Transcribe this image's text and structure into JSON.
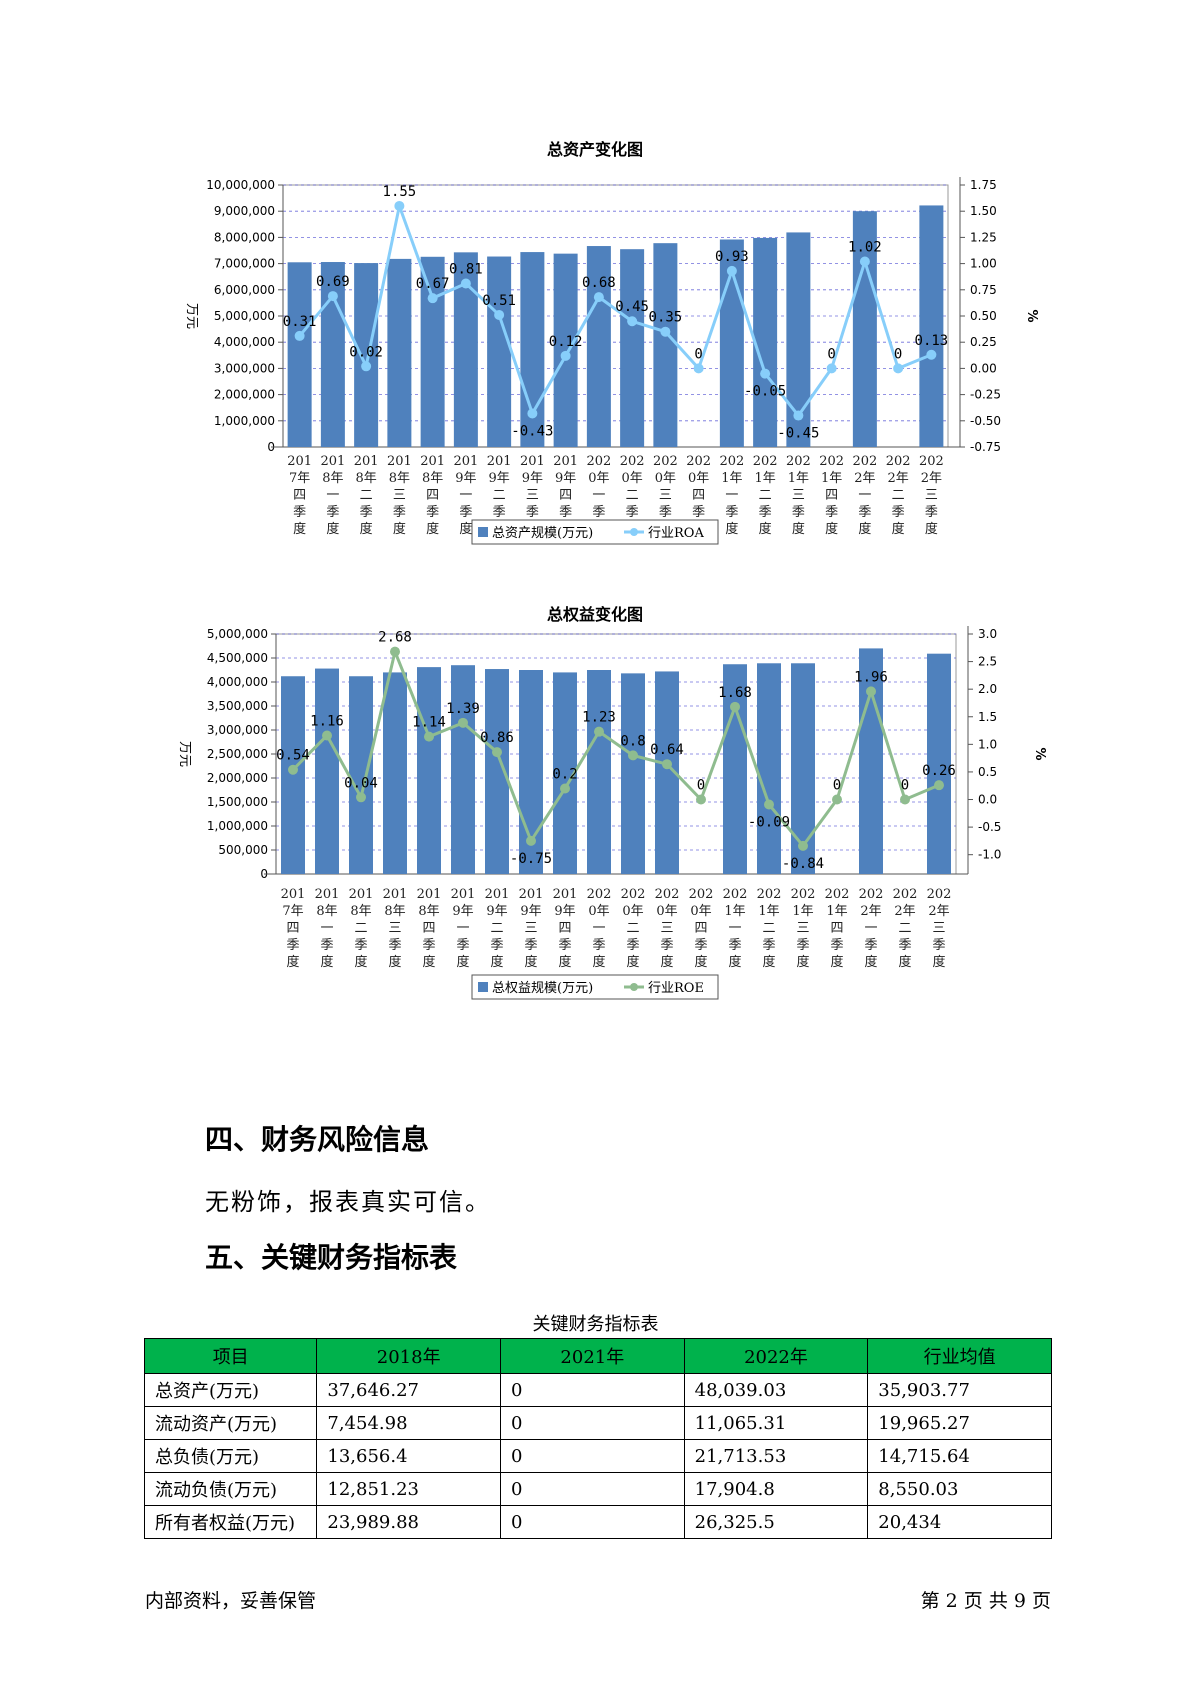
{
  "chart_data": [
    {
      "type": "bar",
      "title": "总资产变化图",
      "ylabel": "万元",
      "y2label": "%",
      "categories": [
        "2017年四季度",
        "2018年一季度",
        "2018年二季度",
        "2018年三季度",
        "2018年四季度",
        "2019年一季度",
        "2019年二季度",
        "2019年三季度",
        "2019年四季度",
        "2020年一季度",
        "2020年二季度",
        "2020年三季度",
        "2020年四季度",
        "2021年一季度",
        "2021年二季度",
        "2021年三季度",
        "2021年四季度",
        "2022年一季度",
        "2022年二季度",
        "2022年三季度"
      ],
      "tick_lines": [
        [
          "201",
          "7年",
          "四",
          "季",
          "度"
        ],
        [
          "201",
          "8年",
          "一",
          "季",
          "度"
        ],
        [
          "201",
          "8年",
          "二",
          "季",
          "度"
        ],
        [
          "201",
          "8年",
          "三",
          "季",
          "度"
        ],
        [
          "201",
          "8年",
          "四",
          "季",
          "度"
        ],
        [
          "201",
          "9年",
          "一",
          "季",
          "度"
        ],
        [
          "201",
          "9年",
          "二",
          "季",
          "度"
        ],
        [
          "201",
          "9年",
          "三",
          "季",
          "度"
        ],
        [
          "201",
          "9年",
          "四",
          "季",
          "度"
        ],
        [
          "202",
          "0年",
          "一",
          "季",
          "度"
        ],
        [
          "202",
          "0年",
          "二",
          "季",
          "度"
        ],
        [
          "202",
          "0年",
          "三",
          "季",
          "度"
        ],
        [
          "202",
          "0年",
          "四",
          "季",
          "度"
        ],
        [
          "202",
          "1年",
          "一",
          "季",
          "度"
        ],
        [
          "202",
          "1年",
          "二",
          "季",
          "度"
        ],
        [
          "202",
          "1年",
          "三",
          "季",
          "度"
        ],
        [
          "202",
          "1年",
          "四",
          "季",
          "度"
        ],
        [
          "202",
          "2年",
          "一",
          "季",
          "度"
        ],
        [
          "202",
          "2年",
          "二",
          "季",
          "度"
        ],
        [
          "202",
          "2年",
          "三",
          "季",
          "度"
        ]
      ],
      "series": [
        {
          "name": "总资产规模(万元)",
          "type": "bar",
          "axis": "left",
          "color": "#4f81bd",
          "values": [
            7050000,
            7060000,
            7020000,
            7180000,
            7260000,
            7430000,
            7270000,
            7440000,
            7380000,
            7670000,
            7550000,
            7780000,
            null,
            7920000,
            7980000,
            8190000,
            null,
            9000000,
            null,
            9220000
          ]
        },
        {
          "name": "行业ROA",
          "type": "line",
          "axis": "right",
          "color": "#87cefa",
          "values": [
            0.31,
            0.69,
            0.02,
            1.55,
            0.67,
            0.81,
            0.51,
            -0.43,
            0.12,
            0.68,
            0.45,
            0.35,
            0,
            0.93,
            -0.05,
            -0.45,
            0,
            1.02,
            0,
            0.13
          ],
          "labels": [
            "0.31",
            "0.69",
            "0.02",
            "1.55",
            "0.67",
            "0.81",
            "0.51",
            "-0.43",
            "0.12",
            "0.68",
            "0.45",
            "0.35",
            "0",
            "0.93",
            "-0.05",
            "-0.45",
            "0",
            "1.02",
            "0",
            "0.13"
          ]
        }
      ],
      "ylim": [
        0,
        10000000
      ],
      "yticks": [
        0,
        1000000,
        2000000,
        3000000,
        4000000,
        5000000,
        6000000,
        7000000,
        8000000,
        9000000,
        10000000
      ],
      "ytick_labels": [
        "0",
        "1,000,000",
        "2,000,000",
        "3,000,000",
        "4,000,000",
        "5,000,000",
        "6,000,000",
        "7,000,000",
        "8,000,000",
        "9,000,000",
        "10,000,000"
      ],
      "y2lim": [
        -0.75,
        1.75
      ],
      "y2ticks": [
        -0.75,
        -0.5,
        -0.25,
        0,
        0.25,
        0.5,
        0.75,
        1,
        1.25,
        1.5,
        1.75
      ],
      "y2tick_labels": [
        "-0.75",
        "-0.50",
        "-0.25",
        "0.00",
        "0.25",
        "0.50",
        "0.75",
        "1.00",
        "1.25",
        "1.50",
        "1.75"
      ],
      "grid": true,
      "legend": "bottom-center"
    },
    {
      "type": "bar",
      "title": "总权益变化图",
      "ylabel": "万元",
      "y2label": "%",
      "categories": [
        "2017年四季度",
        "2018年一季度",
        "2018年二季度",
        "2018年三季度",
        "2018年四季度",
        "2019年一季度",
        "2019年二季度",
        "2019年三季度",
        "2019年四季度",
        "2020年一季度",
        "2020年二季度",
        "2020年三季度",
        "2020年四季度",
        "2021年一季度",
        "2021年二季度",
        "2021年三季度",
        "2021年四季度",
        "2022年一季度",
        "2022年二季度",
        "2022年三季度"
      ],
      "tick_lines": [
        [
          "201",
          "7年",
          "四",
          "季",
          "度"
        ],
        [
          "201",
          "8年",
          "一",
          "季",
          "度"
        ],
        [
          "201",
          "8年",
          "二",
          "季",
          "度"
        ],
        [
          "201",
          "8年",
          "三",
          "季",
          "度"
        ],
        [
          "201",
          "8年",
          "四",
          "季",
          "度"
        ],
        [
          "201",
          "9年",
          "一",
          "季",
          "度"
        ],
        [
          "201",
          "9年",
          "二",
          "季",
          "度"
        ],
        [
          "201",
          "9年",
          "三",
          "季",
          "度"
        ],
        [
          "201",
          "9年",
          "四",
          "季",
          "度"
        ],
        [
          "202",
          "0年",
          "一",
          "季",
          "度"
        ],
        [
          "202",
          "0年",
          "二",
          "季",
          "度"
        ],
        [
          "202",
          "0年",
          "三",
          "季",
          "度"
        ],
        [
          "202",
          "0年",
          "四",
          "季",
          "度"
        ],
        [
          "202",
          "1年",
          "一",
          "季",
          "度"
        ],
        [
          "202",
          "1年",
          "二",
          "季",
          "度"
        ],
        [
          "202",
          "1年",
          "三",
          "季",
          "度"
        ],
        [
          "202",
          "1年",
          "四",
          "季",
          "度"
        ],
        [
          "202",
          "2年",
          "一",
          "季",
          "度"
        ],
        [
          "202",
          "2年",
          "二",
          "季",
          "度"
        ],
        [
          "202",
          "2年",
          "三",
          "季",
          "度"
        ]
      ],
      "series": [
        {
          "name": "总权益规模(万元)",
          "type": "bar",
          "axis": "left",
          "color": "#4f81bd",
          "values": [
            4120000,
            4280000,
            4120000,
            4200000,
            4310000,
            4350000,
            4270000,
            4250000,
            4200000,
            4250000,
            4180000,
            4220000,
            null,
            4370000,
            4390000,
            4390000,
            null,
            4700000,
            null,
            4590000
          ]
        },
        {
          "name": "行业ROE",
          "type": "line",
          "axis": "right",
          "color": "#8fbc8f",
          "values": [
            0.54,
            1.16,
            0.04,
            2.68,
            1.14,
            1.39,
            0.86,
            -0.75,
            0.2,
            1.23,
            0.8,
            0.64,
            0,
            1.68,
            -0.09,
            -0.84,
            0,
            1.96,
            0,
            0.26
          ],
          "labels": [
            "0.54",
            "1.16",
            "0.04",
            "2.68",
            "1.14",
            "1.39",
            "0.86",
            "-0.75",
            "0.2",
            "1.23",
            "0.8",
            "0.64",
            "0",
            "1.68",
            "-0.09",
            "-0.84",
            "0",
            "1.96",
            "0",
            "0.26"
          ]
        }
      ],
      "ylim": [
        0,
        5000000
      ],
      "yticks": [
        0,
        500000,
        1000000,
        1500000,
        2000000,
        2500000,
        3000000,
        3500000,
        4000000,
        4500000,
        5000000
      ],
      "ytick_labels": [
        "0",
        "500,000",
        "1,000,000",
        "1,500,000",
        "2,000,000",
        "2,500,000",
        "3,000,000",
        "3,500,000",
        "4,000,000",
        "4,500,000",
        "5,000,000"
      ],
      "y2lim": [
        -1.35,
        3.0
      ],
      "y2ticks": [
        -1,
        -0.5,
        0,
        0.5,
        1,
        1.5,
        2,
        2.5,
        3
      ],
      "y2tick_labels": [
        "-1.0",
        "-0.5",
        "0.0",
        "0.5",
        "1.0",
        "1.5",
        "2.0",
        "2.5",
        "3.0"
      ],
      "grid": true,
      "legend": "bottom-center"
    }
  ],
  "sections": {
    "s4_title": "四、财务风险信息",
    "s4_text": "无粉饰，报表真实可信。",
    "s5_title": "五、关键财务指标表"
  },
  "table": {
    "caption": "关键财务指标表",
    "headers": [
      "项目",
      "2018年",
      "2021年",
      "2022年",
      "行业均值"
    ],
    "rows": [
      [
        "总资产(万元)",
        "37,646.27",
        "0",
        "48,039.03",
        "35,903.77"
      ],
      [
        "流动资产(万元)",
        "7,454.98",
        "0",
        "11,065.31",
        "19,965.27"
      ],
      [
        "总负债(万元)",
        "13,656.4",
        "0",
        "21,713.53",
        "14,715.64"
      ],
      [
        "流动负债(万元)",
        "12,851.23",
        "0",
        "17,904.8",
        "8,550.03"
      ],
      [
        "所有者权益(万元)",
        "23,989.88",
        "0",
        "26,325.5",
        "20,434"
      ]
    ]
  },
  "footer": {
    "left": "内部资料，妥善保管",
    "right": "第 2 页  共 9 页"
  }
}
